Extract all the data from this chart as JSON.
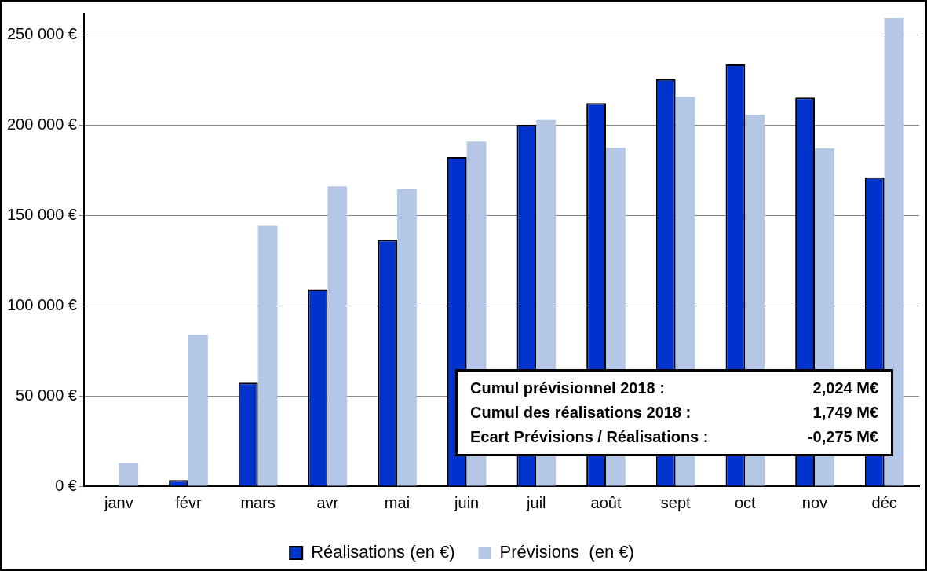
{
  "chart_data": {
    "type": "bar",
    "categories": [
      "janv",
      "févr",
      "mars",
      "avr",
      "mai",
      "juin",
      "juil",
      "août",
      "sept",
      "oct",
      "nov",
      "déc"
    ],
    "series": [
      {
        "name": "Réalisations (en €)",
        "color": "#0033cc",
        "values": [
          0,
          3400,
          57300,
          109000,
          136600,
          182400,
          200300,
          212300,
          225600,
          233700,
          215300,
          171200
        ]
      },
      {
        "name": "Prévisions  (en €)",
        "color": "#b4c7e7",
        "values": [
          12800,
          83900,
          144300,
          166100,
          164800,
          190900,
          202900,
          187500,
          215800,
          205900,
          187100,
          259400
        ]
      }
    ],
    "ylim": [
      0,
      262000
    ],
    "yticks": [
      {
        "value": 0,
        "label": "0 €"
      },
      {
        "value": 50000,
        "label": "50 000 €"
      },
      {
        "value": 100000,
        "label": "100 000 €"
      },
      {
        "value": 150000,
        "label": "150 000 €"
      },
      {
        "value": 200000,
        "label": "200 000 €"
      },
      {
        "value": 250000,
        "label": "250 000 €"
      }
    ],
    "grid": "y",
    "legend": "bottom",
    "annotations": [
      "Cumul prévisionnel 2018 :",
      "2,024 M€",
      "Cumul des réalisations 2018 :",
      "1,749 M€",
      "Ecart Prévisions / Réalisations :",
      "-0,275 M€"
    ]
  }
}
